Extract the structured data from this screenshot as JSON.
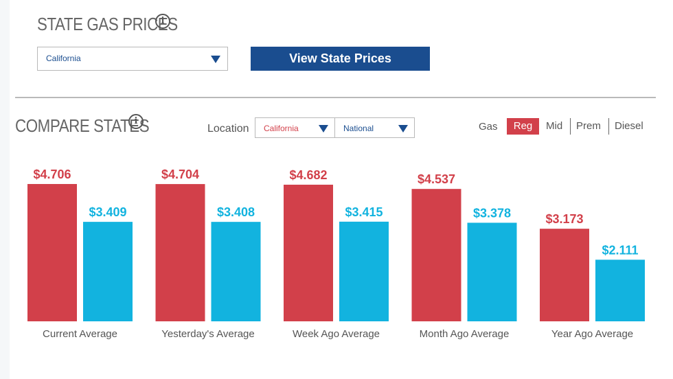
{
  "state_prices": {
    "title": "STATE GAS PRICES",
    "info_icon": "info-icon",
    "state_select": {
      "value": "California"
    },
    "view_button_label": "View State Prices"
  },
  "compare": {
    "title": "COMPARE STATES",
    "info_icon": "info-icon",
    "location_label": "Location",
    "location_a": "California",
    "location_b": "National",
    "grade_label": "Gas",
    "grades": [
      "Reg",
      "Mid",
      "Prem",
      "Diesel"
    ],
    "active_grade": "Reg"
  },
  "colors": {
    "state": "#d2404a",
    "national": "#12b3df",
    "brand": "#1a4d8f"
  },
  "chart_data": {
    "type": "bar",
    "categories": [
      "Current Average",
      "Yesterday's Average",
      "Week Ago Average",
      "Month Ago Average",
      "Year Ago Average"
    ],
    "series": [
      {
        "values": [
          4.706,
          4.704,
          4.682,
          4.537,
          3.173
        ],
        "labels": [
          "$4.706",
          "$4.704",
          "$4.682",
          "$4.537",
          "$3.173"
        ]
      },
      {
        "values": [
          3.409,
          3.408,
          3.415,
          3.378,
          2.111
        ],
        "labels": [
          "$3.409",
          "$3.408",
          "$3.415",
          "$3.378",
          "$2.111"
        ]
      }
    ],
    "ylim": [
      0,
      5
    ],
    "grid": false
  }
}
